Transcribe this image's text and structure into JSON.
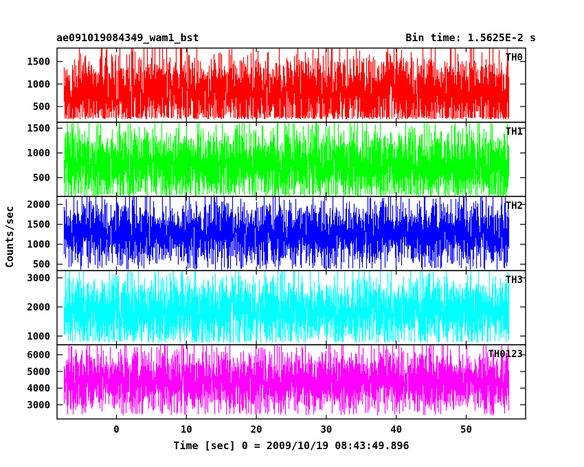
{
  "header": {
    "left_title": "ae091019084349_wam1_bst",
    "right_title": "Bin time: 1.5625E-2 s"
  },
  "axes": {
    "ylabel": "Counts/sec",
    "xlabel": "Time [sec] 0 = 2009/10/19 08:43:49.896"
  },
  "chart_data": {
    "type": "line",
    "x_range": [
      -8.5,
      58.5
    ],
    "data_x_range": [
      -7.5,
      56.0
    ],
    "bin_time": 0.015625,
    "x_ticks": [
      0,
      10,
      20,
      30,
      40,
      50
    ],
    "x_tick_labels": [
      "0",
      "10",
      "20",
      "30",
      "40",
      "50"
    ],
    "panels": [
      {
        "name": "TH0",
        "color": "#ff0000",
        "ylim": [
          150,
          1800
        ],
        "y_ticks": [
          500,
          1000,
          1500
        ],
        "y_tick_labels": [
          "500",
          "1000",
          "1500"
        ],
        "baseline": 280,
        "mean": 780,
        "peak": 1800
      },
      {
        "name": "TH1",
        "color": "#00ff00",
        "ylim": [
          120,
          1620
        ],
        "y_ticks": [
          500,
          1000,
          1500
        ],
        "y_tick_labels": [
          "500",
          "1000",
          "1500"
        ],
        "baseline": 180,
        "mean": 750,
        "peak": 1600
      },
      {
        "name": "TH2",
        "color": "#0000ff",
        "ylim": [
          340,
          2200
        ],
        "y_ticks": [
          500,
          1000,
          1500,
          2000
        ],
        "y_tick_labels": [
          "500",
          "1000",
          "1500",
          "2000"
        ],
        "baseline": 420,
        "mean": 1250,
        "peak": 2200
      },
      {
        "name": "TH3",
        "color": "#00ffff",
        "ylim": [
          700,
          3250
        ],
        "y_ticks": [
          1000,
          2000,
          3000
        ],
        "y_tick_labels": [
          "1000",
          "2000",
          "3000"
        ],
        "baseline": 850,
        "mean": 1850,
        "peak": 3250
      },
      {
        "name": "TH0123",
        "color": "#ff00ff",
        "ylim": [
          2150,
          6600
        ],
        "y_ticks": [
          3000,
          4000,
          5000,
          6000
        ],
        "y_tick_labels": [
          "3000",
          "4000",
          "5000",
          "6000"
        ],
        "baseline": 2500,
        "mean": 4400,
        "peak": 6600
      }
    ]
  }
}
